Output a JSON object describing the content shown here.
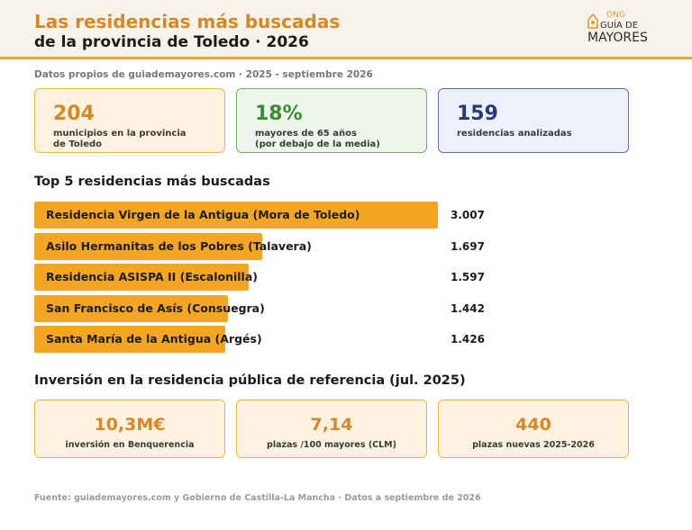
{
  "header": {
    "title_line1": "Las residencias más buscadas",
    "title_line2": "de la provincia de Toledo · 2026",
    "logo": {
      "ong": "ONG",
      "guia": "GUÍA DE",
      "mayores": "MAYORES",
      "icon": "house-heart-icon",
      "accent": "#e6962c"
    }
  },
  "subtitle": "Datos propios de guiademayores.com · 2025 - septiembre 2026",
  "stats": [
    {
      "value": "204",
      "label_line1": "municipios en la provincia",
      "label_line2": "de Toledo"
    },
    {
      "value": "18%",
      "label_line1": "mayores de 65 años",
      "label_line2": "(por debajo de la media)"
    },
    {
      "value": "159",
      "label_line1": "residencias analizadas",
      "label_line2": ""
    }
  ],
  "top5": {
    "title": "Top 5 residencias más buscadas",
    "bar_color": "#f4a622",
    "max_value": 3007,
    "items": [
      {
        "name": "Residencia Virgen de la Antigua (Mora de Toledo)",
        "value": 3007,
        "value_label": "3.007"
      },
      {
        "name": "Asilo Hermanitas de los Pobres (Talavera)",
        "value": 1697,
        "value_label": "1.697"
      },
      {
        "name": "Residencia ASISPA II (Escalonilla)",
        "value": 1597,
        "value_label": "1.597"
      },
      {
        "name": "San Francisco de Asís (Consuegra)",
        "value": 1442,
        "value_label": "1.442"
      },
      {
        "name": "Santa María de la Antigua (Argés)",
        "value": 1426,
        "value_label": "1.426"
      }
    ]
  },
  "investment": {
    "title": "Inversión en la residencia pública de referencia (jul. 2025)",
    "cards": [
      {
        "value": "10,3M€",
        "label": "inversión en Benquerencia"
      },
      {
        "value": "7,14",
        "label": "plazas /100 mayores (CLM)"
      },
      {
        "value": "440",
        "label": "plazas nuevas 2025-2026"
      }
    ]
  },
  "footer": "Fuente: guiademayores.com y Gobierno de Castilla-La Mancha · Datos a septiembre de 2026"
}
